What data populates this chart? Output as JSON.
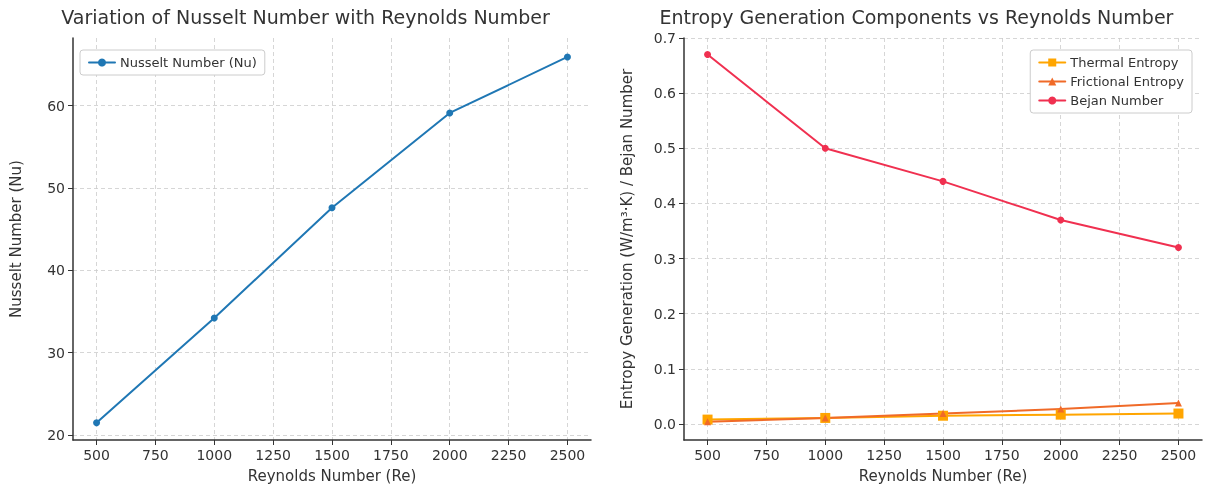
{
  "chart_data": [
    {
      "type": "line",
      "title": "Variation of Nusselt Number with Reynolds Number",
      "xlabel": "Reynolds Number (Re)",
      "ylabel": "Nusselt Number (Nu)",
      "x": [
        500,
        1000,
        1500,
        2000,
        2500
      ],
      "series": [
        {
          "name": "Nusselt Number (Nu)",
          "color": "#1f77b4",
          "values": [
            21.5,
            34.2,
            47.6,
            59.1,
            65.9
          ]
        }
      ],
      "xlim": [
        400,
        2600
      ],
      "xticks": [
        500,
        750,
        1000,
        1250,
        1500,
        1750,
        2000,
        2250,
        2500
      ],
      "ylim": [
        19.4,
        68.2
      ],
      "yticks": [
        20,
        30,
        40,
        50,
        60
      ],
      "grid": true,
      "legend": "top left",
      "marker": "circle",
      "line_style": "solid"
    },
    {
      "type": "line",
      "title": "Entropy Generation Components vs Reynolds Number",
      "xlabel": "Reynolds Number (Re)",
      "ylabel": "Entropy Generation (W/m³·K) / Bejan Number",
      "x": [
        500,
        1000,
        1500,
        2000,
        2500
      ],
      "series": [
        {
          "name": "Thermal Entropy",
          "color": "#ffa500",
          "marker": "square",
          "values": [
            0.008,
            0.011,
            0.015,
            0.017,
            0.019
          ]
        },
        {
          "name": "Frictional Entropy",
          "color": "#f06a28",
          "marker": "triangle",
          "values": [
            0.004,
            0.011,
            0.019,
            0.027,
            0.038
          ]
        },
        {
          "name": "Bejan Number",
          "color": "#f03050",
          "marker": "circle",
          "values": [
            0.67,
            0.5,
            0.44,
            0.37,
            0.32
          ]
        }
      ],
      "xlim": [
        400,
        2600
      ],
      "xticks": [
        500,
        750,
        1000,
        1250,
        1500,
        1750,
        2000,
        2250,
        2500
      ],
      "ylim": [
        -0.029,
        0.7
      ],
      "yticks": [
        {
          "value": 0,
          "label": "0.0"
        },
        0.1,
        0.2,
        0.3,
        0.4,
        0.5,
        0.6,
        0.7
      ],
      "grid": true,
      "legend": "top right",
      "line_style": "solid"
    }
  ]
}
